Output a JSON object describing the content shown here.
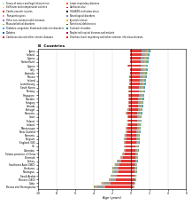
{
  "chart_data": {
    "type": "bar",
    "orientation": "horizontal",
    "stacked": true,
    "title": "B  Countries",
    "x_label": "Age (years)",
    "categories": [
      "Japan",
      "Iceland",
      "Cyprus",
      "Switzerland",
      "Cyprus",
      "Italy",
      "Australia",
      "Mexico",
      "Ireland",
      "Luxembourg",
      "South Korea",
      "Norway",
      "Singapore",
      "Sweden",
      "Hungary",
      "Canada",
      "Portugal",
      "Romania",
      "Israel",
      "Finland",
      "Iceland",
      "Montenegro",
      "New Zealand",
      "Romania",
      "Belgium",
      "England (UK)",
      "US",
      "Colombia",
      "Taiwan province of China",
      "Denmark",
      "Turkey",
      "Southeast Asia (GBD)",
      "Honduras",
      "Nicaragua",
      "Saudi Arabia",
      "Mexico (GBD)",
      "Cuba",
      "Bosnia and Herzegovina"
    ],
    "series": [
      {
        "color": "#e53935",
        "values": [
          1.2,
          1.15,
          1.1,
          1.08,
          1.05,
          1.05,
          1.02,
          0.98,
          0.95,
          0.93,
          0.9,
          0.88,
          0.85,
          0.83,
          0.8,
          0.78,
          0.75,
          0.72,
          0.7,
          0.68,
          0.66,
          0.64,
          0.62,
          0.6,
          0.58,
          0.56,
          0.54,
          0.52,
          0.5,
          0.48,
          0.45,
          0.43,
          0.41,
          0.4,
          0.38,
          0.36,
          0.3,
          0.25
        ]
      },
      {
        "color": "#9e9e9e",
        "values": [
          0.4,
          0.38,
          0.36,
          0.35,
          0.33,
          0.34,
          0.33,
          0.32,
          0.31,
          0.3,
          0.29,
          0.28,
          0.27,
          0.26,
          0.25,
          0.25,
          0.24,
          0.22,
          0.22,
          0.21,
          0.2,
          0.2,
          0.19,
          0.18,
          0.18,
          0.17,
          0.17,
          0.16,
          0.15,
          0.14,
          0.14,
          0.13,
          0.12,
          0.12,
          0.11,
          0.11,
          0.09,
          0.07
        ]
      },
      {
        "color": "#c8a882",
        "values": [
          0.3,
          0.28,
          0.27,
          0.26,
          0.25,
          0.25,
          0.24,
          0.23,
          0.22,
          0.22,
          0.21,
          0.2,
          0.19,
          0.19,
          0.18,
          0.17,
          0.17,
          0.16,
          0.15,
          0.15,
          0.14,
          0.14,
          0.13,
          0.13,
          0.12,
          0.12,
          0.11,
          0.11,
          0.1,
          0.1,
          0.09,
          0.09,
          0.08,
          0.08,
          0.08,
          0.07,
          0.06,
          0.05
        ]
      },
      {
        "color": "#66bb6a",
        "values": [
          0.15,
          0.14,
          0.13,
          0.13,
          0.12,
          0.12,
          0.12,
          0.11,
          0.11,
          0.1,
          0.1,
          0.1,
          0.09,
          0.09,
          0.09,
          0.08,
          0.08,
          0.08,
          0.07,
          0.07,
          0.07,
          0.07,
          0.06,
          0.06,
          0.06,
          0.06,
          0.05,
          0.05,
          0.05,
          0.05,
          0.04,
          0.04,
          0.04,
          0.04,
          0.04,
          0.03,
          0.03,
          0.02
        ]
      },
      {
        "color": "#42a5f5",
        "values": [
          0.08,
          0.07,
          0.07,
          0.07,
          0.06,
          0.06,
          0.06,
          0.06,
          0.05,
          0.05,
          0.05,
          0.05,
          0.05,
          0.04,
          0.04,
          0.04,
          0.04,
          0.04,
          0.04,
          0.04,
          0.03,
          0.03,
          0.03,
          0.03,
          0.03,
          0.03,
          0.03,
          0.03,
          0.02,
          0.02,
          0.02,
          0.02,
          0.02,
          0.02,
          0.02,
          0.02,
          0.01,
          0.01
        ]
      },
      {
        "color": "#c8e6c9",
        "values": [
          0.05,
          0.05,
          0.05,
          0.04,
          0.04,
          0.04,
          0.04,
          0.04,
          0.04,
          0.03,
          0.03,
          0.03,
          0.03,
          0.03,
          0.03,
          0.03,
          0.02,
          0.02,
          0.02,
          0.02,
          0.02,
          0.02,
          0.02,
          0.02,
          0.02,
          0.01,
          0.01,
          0.01,
          0.01,
          0.01,
          0.01,
          0.01,
          0.01,
          0.01,
          0.01,
          0.01,
          0.01,
          0.01
        ]
      },
      {
        "color": "#e53935",
        "values": [
          -0.05,
          -0.05,
          -0.05,
          -0.05,
          -0.25,
          -0.05,
          -0.06,
          -0.08,
          -0.1,
          -0.12,
          -0.15,
          -0.15,
          -0.2,
          -0.18,
          -0.2,
          -0.2,
          -0.22,
          -0.38,
          -0.25,
          -0.28,
          -0.28,
          -0.38,
          -0.38,
          -0.48,
          -0.5,
          -0.52,
          -0.52,
          -0.52,
          -0.65,
          -0.8,
          -1.05,
          -1.2,
          -1.35,
          -1.35,
          -1.5,
          -1.65,
          -2.2,
          -2.75
        ]
      },
      {
        "color": "#9e9e9e",
        "values": [
          -0.02,
          -0.02,
          -0.02,
          -0.02,
          -0.08,
          -0.02,
          -0.02,
          -0.03,
          -0.03,
          -0.04,
          -0.05,
          -0.05,
          -0.06,
          -0.06,
          -0.06,
          -0.07,
          -0.07,
          -0.12,
          -0.08,
          -0.09,
          -0.09,
          -0.12,
          -0.12,
          -0.15,
          -0.16,
          -0.17,
          -0.17,
          -0.17,
          -0.2,
          -0.25,
          -0.33,
          -0.38,
          -0.42,
          -0.42,
          -0.47,
          -0.52,
          -0.7,
          -0.87
        ]
      },
      {
        "color": "#c8a882",
        "values": [
          -0.01,
          -0.01,
          -0.01,
          -0.01,
          -0.03,
          -0.01,
          -0.01,
          -0.01,
          -0.02,
          -0.02,
          -0.02,
          -0.02,
          -0.02,
          -0.02,
          -0.02,
          -0.02,
          -0.02,
          -0.04,
          -0.03,
          -0.03,
          -0.03,
          -0.04,
          -0.04,
          -0.05,
          -0.05,
          -0.05,
          -0.05,
          -0.05,
          -0.06,
          -0.08,
          -0.1,
          -0.11,
          -0.13,
          -0.13,
          -0.14,
          -0.16,
          -0.21,
          -0.26
        ]
      },
      {
        "color": "#66bb6a",
        "values": [
          -0.01,
          -0.01,
          -0.01,
          -0.01,
          -0.02,
          -0.01,
          -0.01,
          -0.01,
          -0.01,
          -0.01,
          -0.01,
          -0.01,
          -0.01,
          -0.01,
          -0.01,
          -0.01,
          -0.01,
          -0.02,
          -0.01,
          -0.01,
          -0.01,
          -0.02,
          -0.02,
          -0.02,
          -0.02,
          -0.02,
          -0.02,
          -0.02,
          -0.03,
          -0.03,
          -0.04,
          -0.05,
          -0.05,
          -0.05,
          -0.06,
          -0.06,
          -0.08,
          -0.1
        ]
      },
      {
        "color": "#c8e6c9",
        "values": [
          -0.01,
          -0.01,
          -0.01,
          -0.01,
          -0.01,
          -0.01,
          -0.01,
          -0.01,
          -0.01,
          -0.01,
          -0.01,
          -0.01,
          -0.01,
          -0.01,
          -0.01,
          -0.01,
          -0.01,
          -0.01,
          -0.01,
          -0.01,
          -0.01,
          -0.01,
          -0.01,
          -0.01,
          -0.01,
          -0.01,
          -0.01,
          -0.01,
          -0.01,
          -0.01,
          -0.02,
          -0.02,
          -0.02,
          -0.02,
          -0.02,
          -0.02,
          -0.03,
          -0.04
        ]
      }
    ],
    "xlim": [
      -10,
      6
    ],
    "xticks": [
      -10,
      -8,
      -6,
      -4,
      -2,
      0,
      2,
      4,
      6
    ],
    "grid": true,
    "legend": "upper left",
    "legend_entries": [
      {
        "name": "Forces of nature and legal intervention",
        "color": "#c8e6c9"
      },
      {
        "name": "Self harm and interpersonal violence",
        "color": "#ffcc80"
      },
      {
        "name": "Cardio-vascular injuries",
        "color": "#e53935"
      },
      {
        "name": "Transport injuries",
        "color": "#ef9a9a"
      },
      {
        "name": "Other non-communicable diseases",
        "color": "#9575cd"
      },
      {
        "name": "Musculoskeletal disorders",
        "color": "#66bb6a"
      },
      {
        "name": "Diabetes, urogenital, blood and endocrine disorders",
        "color": "#42a5f5"
      },
      {
        "name": "Diabetes",
        "color": "#1565c0"
      },
      {
        "name": "Cardiovascular and other chronic diseases",
        "color": "#c62828"
      },
      {
        "name": "Lower respiratory diseases",
        "color": "#ef6c00"
      },
      {
        "name": "Cardiovascular",
        "color": "#b71c1c"
      },
      {
        "name": "HIV/AIDS and tuberculosis",
        "color": "#212121"
      },
      {
        "name": "Neurological disorders",
        "color": "#78909c"
      },
      {
        "name": "Injuries/violence",
        "color": "#ffa726"
      },
      {
        "name": "Nutritional deficiencies",
        "color": "#2e7d32"
      },
      {
        "name": "Stomach disorders",
        "color": "#00838f"
      },
      {
        "name": "Neglected tropical diseases and malaria",
        "color": "#ad1457"
      },
      {
        "name": "Diarrhea, lower respiratory and other common infectious diseases",
        "color": "#d32f2f"
      }
    ]
  }
}
